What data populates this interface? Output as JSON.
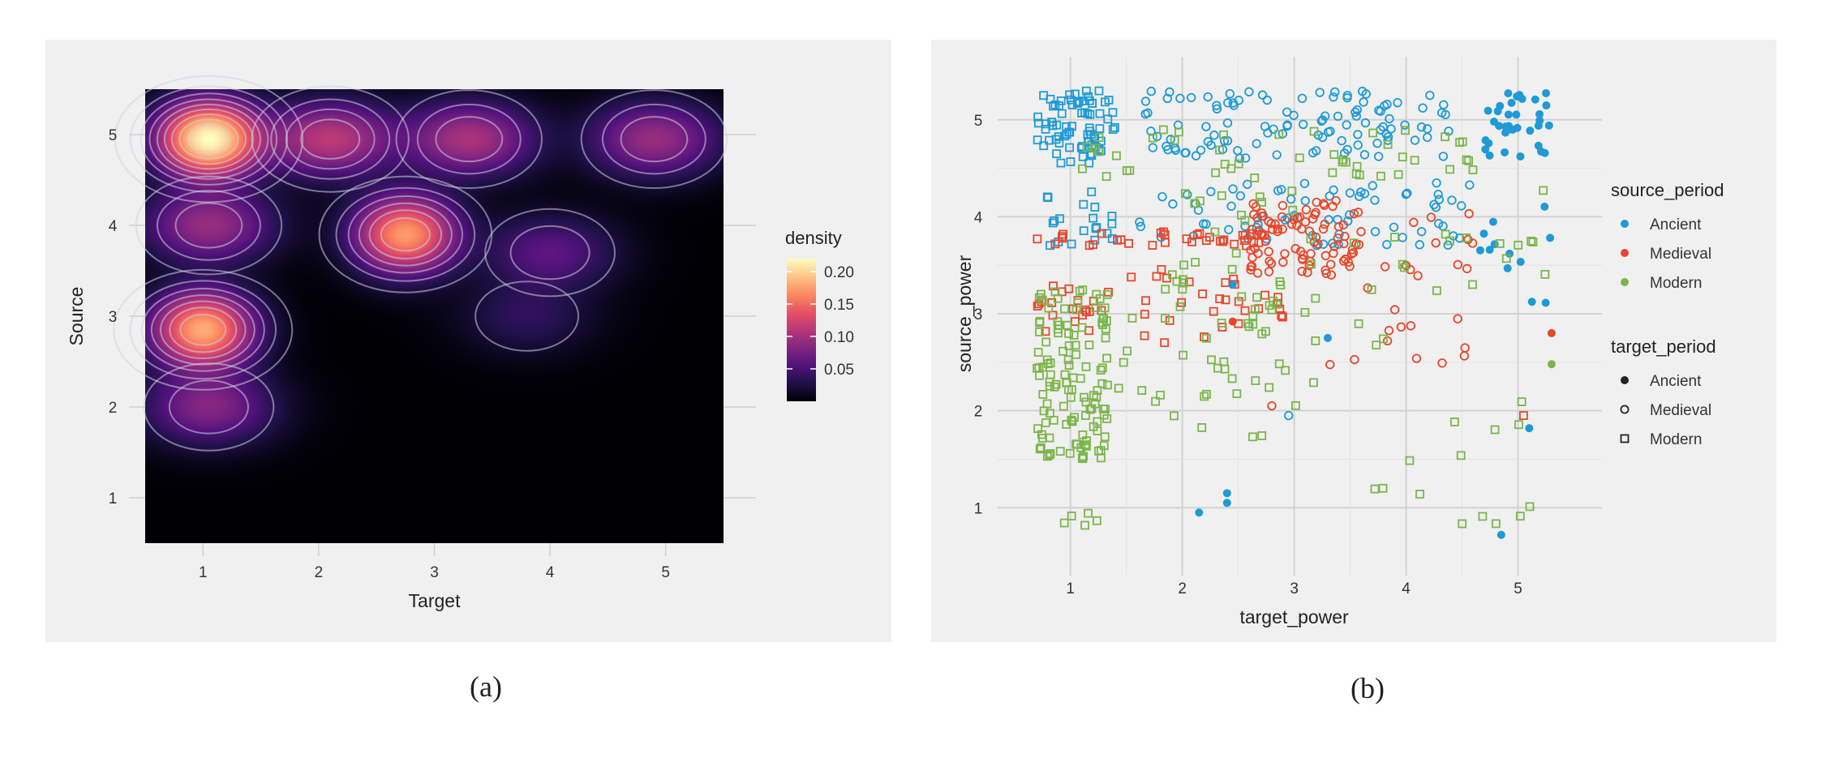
{
  "captions": {
    "a": "(a)",
    "b": "(b)"
  },
  "chart_data": [
    {
      "type": "heatmap",
      "subtype": "2d-density-with-contours",
      "xlabel": "Target",
      "ylabel": "Source",
      "x_ticks": [
        1,
        2,
        3,
        4,
        5
      ],
      "y_ticks": [
        1,
        2,
        3,
        4,
        5
      ],
      "xlim": [
        0.5,
        5.5
      ],
      "ylim": [
        0.5,
        5.5
      ],
      "legend": {
        "title": "density",
        "ticks": [
          "0.05",
          "0.10",
          "0.15",
          "0.20"
        ],
        "tick_values": [
          0.05,
          0.1,
          0.15,
          0.2
        ],
        "range": [
          0,
          0.22
        ],
        "placement": "right"
      },
      "colormap": [
        "#000004",
        "#1d1147",
        "#51127c",
        "#822681",
        "#b73779",
        "#e75263",
        "#fc8961",
        "#fec488",
        "#fcfdbf"
      ],
      "density_peaks": [
        {
          "x": 1.05,
          "y": 4.95,
          "peak": 0.22
        },
        {
          "x": 1.0,
          "y": 2.85,
          "peak": 0.17
        },
        {
          "x": 2.75,
          "y": 3.9,
          "peak": 0.16
        },
        {
          "x": 2.1,
          "y": 4.95,
          "peak": 0.09
        },
        {
          "x": 3.3,
          "y": 4.95,
          "peak": 0.08
        },
        {
          "x": 4.9,
          "y": 4.95,
          "peak": 0.07
        },
        {
          "x": 1.05,
          "y": 4.0,
          "peak": 0.07
        },
        {
          "x": 1.05,
          "y": 2.0,
          "peak": 0.06
        },
        {
          "x": 4.0,
          "y": 3.7,
          "peak": 0.04
        },
        {
          "x": 3.8,
          "y": 3.0,
          "peak": 0.02
        }
      ],
      "grid": true
    },
    {
      "type": "scatter",
      "xlabel": "target_power",
      "ylabel": "source_power",
      "x_ticks": [
        1,
        2,
        3,
        4,
        5
      ],
      "y_ticks": [
        1,
        2,
        3,
        4,
        5
      ],
      "xlim": [
        0.35,
        5.75
      ],
      "ylim": [
        0.3,
        5.65
      ],
      "grid": true,
      "legend_color": {
        "title": "source_period",
        "items": [
          {
            "label": "Ancient",
            "color": "#1f9ad6"
          },
          {
            "label": "Medieval",
            "color": "#e8462a"
          },
          {
            "label": "Modern",
            "color": "#7bb54a"
          }
        ],
        "placement": "right"
      },
      "legend_shape": {
        "title": "target_period",
        "items": [
          {
            "label": "Ancient",
            "shape": "filled-circle"
          },
          {
            "label": "Medieval",
            "shape": "open-circle"
          },
          {
            "label": "Modern",
            "shape": "open-square"
          }
        ],
        "placement": "right"
      },
      "clusters": [
        {
          "source": "Ancient",
          "target": "Modern",
          "x": [
            0.7,
            1.4
          ],
          "y": [
            4.55,
            5.3
          ],
          "n": 75
        },
        {
          "source": "Ancient",
          "target": "Medieval",
          "x": [
            1.6,
            4.4
          ],
          "y": [
            4.6,
            5.3
          ],
          "n": 110
        },
        {
          "source": "Ancient",
          "target": "Ancient",
          "x": [
            4.7,
            5.3
          ],
          "y": [
            4.6,
            5.3
          ],
          "n": 35
        },
        {
          "source": "Ancient",
          "target": "Modern",
          "x": [
            0.7,
            1.4
          ],
          "y": [
            3.7,
            4.3
          ],
          "n": 20
        },
        {
          "source": "Ancient",
          "target": "Medieval",
          "x": [
            1.6,
            4.6
          ],
          "y": [
            3.7,
            4.35
          ],
          "n": 70
        },
        {
          "source": "Ancient",
          "target": "Ancient",
          "x": [
            4.6,
            5.3
          ],
          "y": [
            3.05,
            4.2
          ],
          "n": 12
        },
        {
          "source": "Medieval",
          "target": "Modern",
          "x": [
            0.7,
            2.8
          ],
          "y": [
            3.7,
            3.85
          ],
          "n": 35
        },
        {
          "source": "Medieval",
          "target": "Medieval",
          "x": [
            2.6,
            3.6
          ],
          "y": [
            3.4,
            4.2
          ],
          "n": 85
        },
        {
          "source": "Medieval",
          "target": "Medieval",
          "x": [
            3.3,
            4.6
          ],
          "y": [
            2.4,
            4.1
          ],
          "n": 30
        },
        {
          "source": "Medieval",
          "target": "Modern",
          "x": [
            0.7,
            1.4
          ],
          "y": [
            2.8,
            3.3
          ],
          "n": 20
        },
        {
          "source": "Medieval",
          "target": "Modern",
          "x": [
            1.5,
            3.0
          ],
          "y": [
            2.7,
            3.5
          ],
          "n": 30
        },
        {
          "source": "Modern",
          "target": "Modern",
          "x": [
            0.7,
            1.35
          ],
          "y": [
            1.5,
            3.3
          ],
          "n": 120
        },
        {
          "source": "Modern",
          "target": "Modern",
          "x": [
            0.8,
            4.6
          ],
          "y": [
            4.4,
            4.9
          ],
          "n": 45
        },
        {
          "source": "Modern",
          "target": "Modern",
          "x": [
            1.3,
            3.2
          ],
          "y": [
            1.7,
            3.5
          ],
          "n": 55
        },
        {
          "source": "Modern",
          "target": "Modern",
          "x": [
            1.5,
            5.3
          ],
          "y": [
            3.4,
            4.4
          ],
          "n": 30
        },
        {
          "source": "Modern",
          "target": "Modern",
          "x": [
            3.5,
            5.2
          ],
          "y": [
            0.8,
            3.6
          ],
          "n": 22
        },
        {
          "source": "Modern",
          "target": "Modern",
          "x": [
            0.8,
            1.3
          ],
          "y": [
            0.8,
            0.95
          ],
          "n": 5
        }
      ],
      "outliers": [
        {
          "source": "Ancient",
          "target": "Ancient",
          "x": 2.15,
          "y": 0.95
        },
        {
          "source": "Ancient",
          "target": "Ancient",
          "x": 2.4,
          "y": 1.05
        },
        {
          "source": "Ancient",
          "target": "Ancient",
          "x": 2.4,
          "y": 1.15
        },
        {
          "source": "Ancient",
          "target": "Ancient",
          "x": 4.85,
          "y": 0.72
        },
        {
          "source": "Ancient",
          "target": "Ancient",
          "x": 5.1,
          "y": 1.82
        },
        {
          "source": "Ancient",
          "target": "Ancient",
          "x": 3.3,
          "y": 2.75
        },
        {
          "source": "Ancient",
          "target": "Medieval",
          "x": 2.95,
          "y": 1.95
        },
        {
          "source": "Ancient",
          "target": "Ancient",
          "x": 2.45,
          "y": 3.3
        },
        {
          "source": "Medieval",
          "target": "Ancient",
          "x": 2.45,
          "y": 2.92
        },
        {
          "source": "Medieval",
          "target": "Ancient",
          "x": 5.3,
          "y": 2.8
        },
        {
          "source": "Medieval",
          "target": "Modern",
          "x": 5.05,
          "y": 1.95
        },
        {
          "source": "Medieval",
          "target": "Medieval",
          "x": 2.8,
          "y": 2.05
        },
        {
          "source": "Modern",
          "target": "Ancient",
          "x": 5.3,
          "y": 2.48
        }
      ]
    }
  ]
}
